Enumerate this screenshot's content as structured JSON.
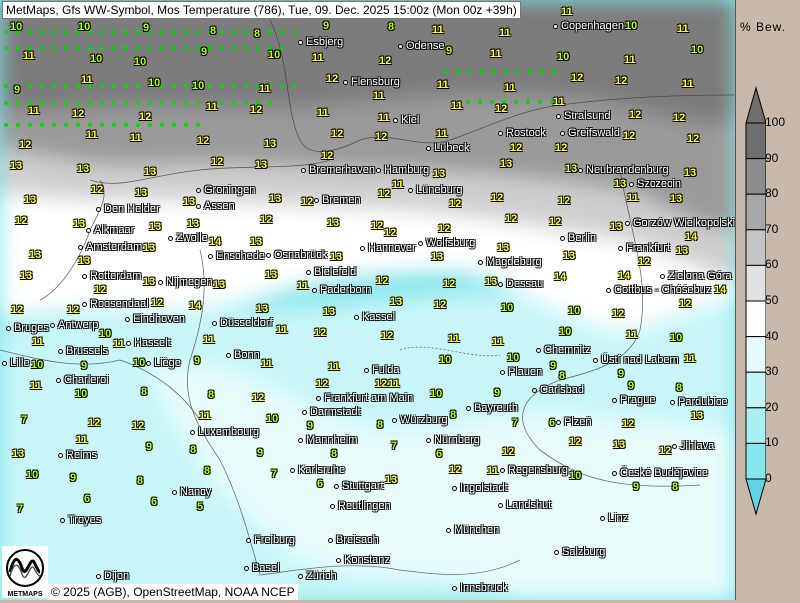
{
  "title": "MetMaps, Gfs WW-Symbol, Mos Temperature (786), Tue, 09. Dec. 2025 15:00z (Mon 00z +39h)",
  "copyright": "© 2025 (AGB), OpenStreetMap, NOAA NCEP",
  "logo_text": "METMAPS",
  "legend": {
    "title": "% Bew.",
    "labels": [
      "100",
      "90",
      "80",
      "70",
      "60",
      "50",
      "40",
      "30",
      "20",
      "10",
      "0"
    ],
    "colors": [
      "#6e6e6e",
      "#8c8c8c",
      "#a8a8a8",
      "#c4c4c4",
      "#e2e2e2",
      "#ffffff",
      "#e6fcfc",
      "#c4f6f8",
      "#a8f0f4",
      "#86e6ee",
      "#5fd2e6"
    ]
  },
  "colors": {
    "warm_temp": "#ffff22",
    "cool_temp": "#b4ff00",
    "precip_dot": "#00dd00"
  },
  "cities": [
    "Esbjerg",
    "Odense",
    "Copenhagen",
    "Flensburg",
    "Kiel",
    "Rostock",
    "Stralsund",
    "Greifswald",
    "Lübeck",
    "Hamburg",
    "Bremerhaven",
    "Neubrandenburg",
    "Szczecin",
    "Groningen",
    "Den Helder",
    "Assen",
    "Bremen",
    "Lüneburg",
    "Alkmaar",
    "Zwolle",
    "Amsterdam",
    "Gorzów Wielkopolski",
    "Berlin",
    "Frankfurt",
    "Wolfsburg",
    "Hannover",
    "Osnabrück",
    "Enschede",
    "Magdeburg",
    "Rotterdam",
    "Bielefeld",
    "Nijmegen",
    "Zielona Góra",
    "Dessau",
    "Cottbus - Chóśebuz",
    "Paderborn",
    "Roosendaal",
    "Eindhoven",
    "Kassel",
    "Düsseldorf",
    "Antwerp",
    "Bruges",
    "Chemnitz",
    "Ústí nad Labem",
    "Hasselt",
    "Brussels",
    "Bonn",
    "Lille",
    "Fulda",
    "Liège",
    "Charleroi",
    "Plauen",
    "Carlsbad",
    "Frankfurt am Main",
    "Prague",
    "Bayreuth",
    "Luxembourg",
    "Darmstadt",
    "Würzburg",
    "Plzeň",
    "Pardubice",
    "Mannheim",
    "Nürnberg",
    "Reims",
    "Jihlava",
    "Regensburg",
    "České Budějovice",
    "Karlsruhe",
    "Stuttgart",
    "Ingolstadt",
    "Nancy",
    "Landshut",
    "Reutlingen",
    "Linz",
    "Troyes",
    "München",
    "Freiburg",
    "Breisach",
    "Konstanz",
    "Basel",
    "Innsbruck",
    "Salzburg",
    "Zürich",
    "Dijon"
  ],
  "temperatures": [
    10,
    10,
    9,
    8,
    8,
    9,
    8,
    11,
    11,
    11,
    10,
    11,
    11,
    10,
    10,
    9,
    10,
    11,
    12,
    9,
    11,
    10,
    11,
    10,
    9,
    11,
    10,
    10,
    11,
    12,
    11,
    11,
    11,
    12,
    12,
    11,
    11,
    12,
    12,
    11,
    12,
    11,
    11,
    11,
    12,
    11,
    12,
    12,
    12,
    11,
    11,
    12,
    13,
    12,
    12,
    11,
    12,
    12,
    12,
    12,
    13,
    13,
    13,
    12,
    13,
    12,
    11,
    13,
    13,
    13,
    13,
    13,
    13,
    12,
    13,
    13,
    13,
    12,
    12,
    12,
    12,
    12,
    11,
    13,
    12,
    13,
    13,
    13,
    12,
    13,
    12,
    12,
    12,
    12,
    13,
    14,
    13,
    13,
    13,
    14,
    13,
    13,
    12,
    13,
    13,
    13,
    12,
    13,
    13,
    12,
    13,
    13,
    13,
    11,
    12,
    12,
    13,
    14,
    14,
    14,
    12,
    12,
    12,
    14,
    13,
    13,
    13,
    12,
    10,
    10,
    12,
    12,
    11,
    10,
    11,
    11,
    11,
    12,
    12,
    11,
    11,
    10,
    11,
    10,
    10,
    9,
    10,
    9,
    11,
    11,
    12,
    10,
    10,
    9,
    9,
    11,
    11,
    10,
    8,
    8,
    12,
    12,
    11,
    10,
    9,
    8,
    9,
    8,
    7,
    12,
    12,
    11,
    10,
    9,
    8,
    8,
    7,
    6,
    12,
    13,
    13,
    11,
    9,
    8,
    9,
    8,
    7,
    6,
    12,
    12,
    13,
    12,
    10,
    9,
    8,
    8,
    7,
    6,
    13,
    12,
    11,
    10,
    9,
    8,
    7,
    6,
    6,
    5
  ]
}
